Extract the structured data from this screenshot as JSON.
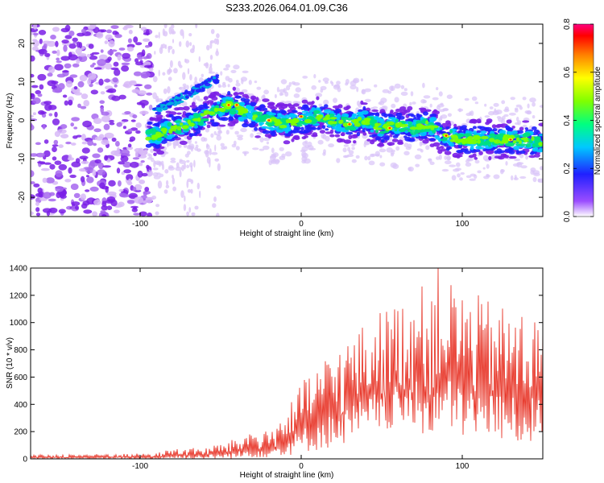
{
  "chart_data": [
    {
      "type": "heatmap",
      "title": "S233.2026.064.01.09.C36",
      "xlabel": "Height of straight line (km)",
      "ylabel": "Frequency (Hz)",
      "xlim": [
        -168,
        150
      ],
      "ylim": [
        -25,
        25
      ],
      "x_ticks": [
        -100,
        0,
        100
      ],
      "y_ticks": [
        -20,
        -10,
        0,
        10,
        20
      ],
      "colorbar": {
        "label": "Normalized spectral amplitude",
        "range": [
          0,
          0.8
        ],
        "ticks": [
          0.0,
          0.2,
          0.4,
          0.6,
          0.8
        ],
        "colors": [
          "#ffffff",
          "#7f00ff",
          "#0000ff",
          "#00c8ff",
          "#00ff80",
          "#80ff00",
          "#ffff00",
          "#ff8000",
          "#ff0000",
          "#ff0080"
        ]
      },
      "ridge": {
        "x": [
          -95,
          -90,
          -80,
          -70,
          -60,
          -50,
          -45,
          -40,
          -30,
          -20,
          -10,
          0,
          10,
          20,
          30,
          40,
          50,
          60,
          70,
          80,
          85,
          90,
          100,
          110,
          120,
          130,
          140,
          150
        ],
        "y": [
          -4,
          -4,
          -2,
          -1,
          1,
          3,
          4,
          3,
          1,
          0,
          -1,
          0,
          1,
          0,
          -1,
          0,
          -2,
          -1,
          -2,
          -1,
          -3,
          -4,
          -5,
          -5,
          -5,
          -5,
          -5,
          -6
        ]
      }
    },
    {
      "type": "line",
      "xlabel": "Height of straight line (km)",
      "ylabel": "SNR (10 * v/v)",
      "xlim": [
        -168,
        150
      ],
      "ylim": [
        0,
        1400
      ],
      "x_ticks": [
        -100,
        0,
        100
      ],
      "y_ticks": [
        0,
        200,
        400,
        600,
        800,
        1000,
        1200,
        1400
      ],
      "color": "#e8392c",
      "envelope": {
        "x": [
          -168,
          -90,
          -80,
          -60,
          -40,
          -30,
          -20,
          -10,
          0,
          10,
          20,
          30,
          40,
          50,
          60,
          70,
          80,
          90,
          100,
          110,
          120,
          130,
          140,
          150
        ],
        "low": [
          0,
          0,
          0,
          0,
          0,
          10,
          10,
          20,
          40,
          60,
          80,
          120,
          150,
          200,
          200,
          200,
          150,
          200,
          150,
          150,
          150,
          100,
          100,
          150
        ],
        "high": [
          30,
          40,
          80,
          80,
          150,
          220,
          200,
          350,
          550,
          700,
          800,
          900,
          1000,
          1100,
          1150,
          1250,
          1300,
          1350,
          1250,
          1200,
          1150,
          1100,
          1100,
          1000
        ]
      },
      "peak": {
        "x": 85,
        "y": 1400
      }
    }
  ]
}
